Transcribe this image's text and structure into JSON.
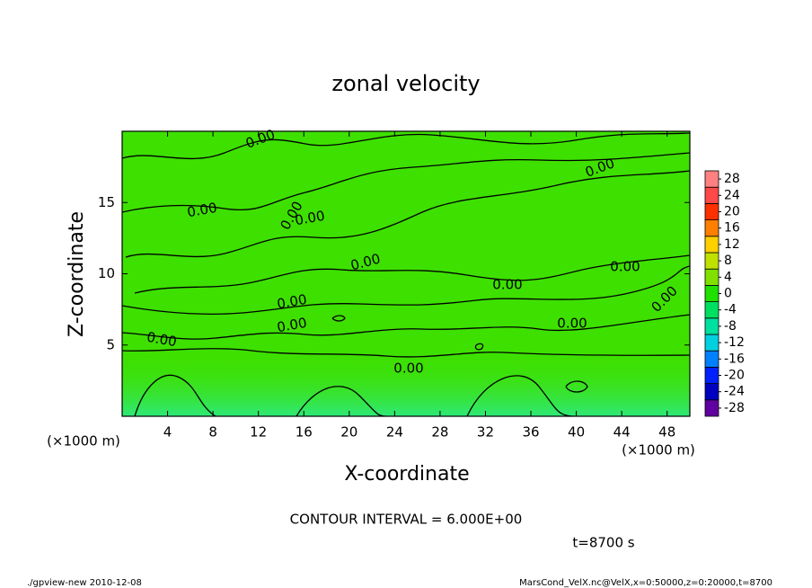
{
  "chart_data": {
    "type": "contour",
    "title": "zonal velocity",
    "x_label": "X-coordinate",
    "y_label": "Z-coordinate",
    "x_unit_label": "(×1000 m)",
    "y_unit_label": "(×1000 m)",
    "xlim": [
      0,
      50
    ],
    "xticks": [
      4,
      8,
      12,
      16,
      20,
      24,
      28,
      32,
      36,
      40,
      44,
      48
    ],
    "ylim": [
      0,
      20
    ],
    "yticks": [
      5,
      10,
      15
    ],
    "contour_labels": [
      "0.00",
      "0.00",
      "0.00",
      "0.00",
      "0.00",
      "0.00",
      "0.00",
      "0.00",
      "0.00",
      "0.00",
      "0.00",
      "0.00",
      "0.00",
      "0.00"
    ],
    "colorbar": {
      "lim": [
        -30,
        30
      ],
      "ticks": [
        -28,
        -24,
        -20,
        -16,
        -12,
        -8,
        -4,
        0,
        4,
        8,
        12,
        16,
        20,
        24,
        28
      ],
      "colors": [
        "#6000a0",
        "#0000c0",
        "#0020ff",
        "#0080ff",
        "#00d0e0",
        "#00e0a0",
        "#00e060",
        "#20e000",
        "#80e000",
        "#c0e000",
        "#ffd000",
        "#ff8000",
        "#ff3000",
        "#ff4848",
        "#ff8080"
      ]
    },
    "contour_interval": "CONTOUR INTERVAL = 6.000E+00",
    "time_label": "t=8700 s",
    "footer_left": "./gpview-new  2010-12-08",
    "footer_right": "MarsCond_VelX.nc@VelX,x=0:50000,z=0:20000,t=8700"
  }
}
